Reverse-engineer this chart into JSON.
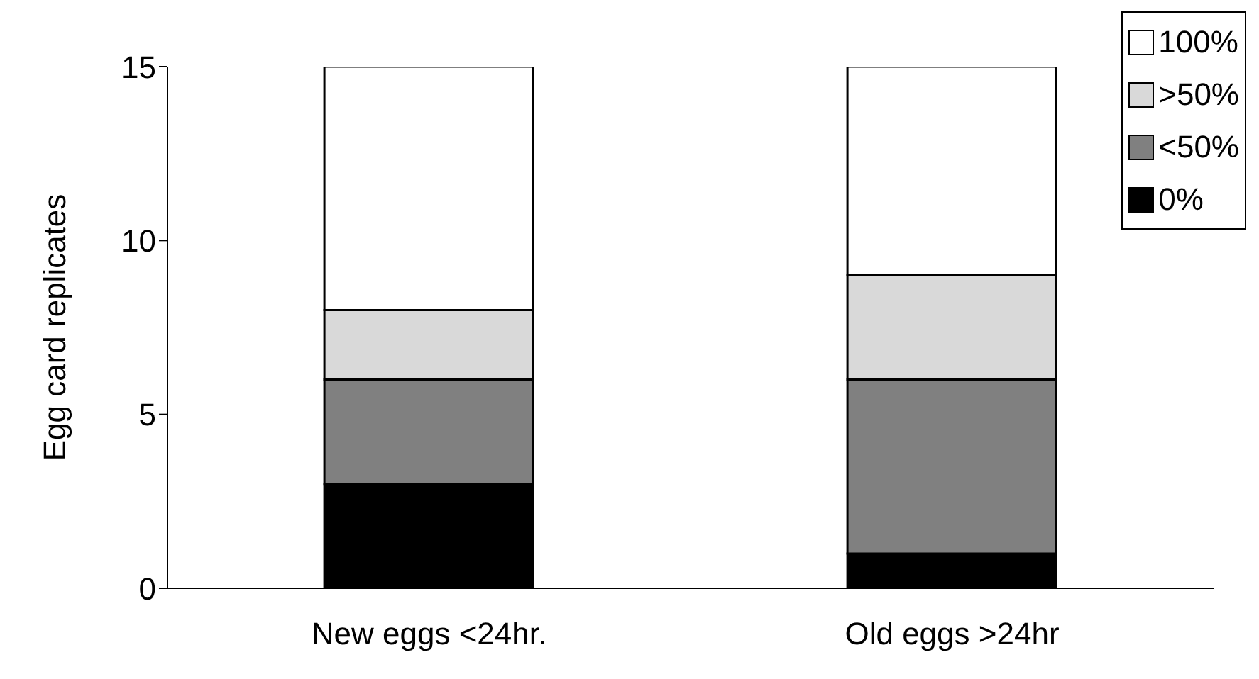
{
  "chart_data": {
    "type": "bar",
    "stacked": true,
    "ylabel": "Egg card replicates",
    "categories": [
      "New eggs <24hr.",
      "Old eggs >24hr"
    ],
    "series": [
      {
        "name": "0%",
        "color": "#000000",
        "values": [
          3,
          1
        ]
      },
      {
        "name": "<50%",
        "color": "#808080",
        "values": [
          3,
          5
        ]
      },
      {
        "name": ">50%",
        "color": "#d9d9d9",
        "values": [
          2,
          3
        ]
      },
      {
        "name": "100%",
        "color": "#ffffff",
        "values": [
          7,
          6
        ]
      }
    ],
    "ylim": [
      0,
      15
    ],
    "yticks": [
      0,
      5,
      10,
      15
    ],
    "grid": false,
    "legend": "top right"
  }
}
